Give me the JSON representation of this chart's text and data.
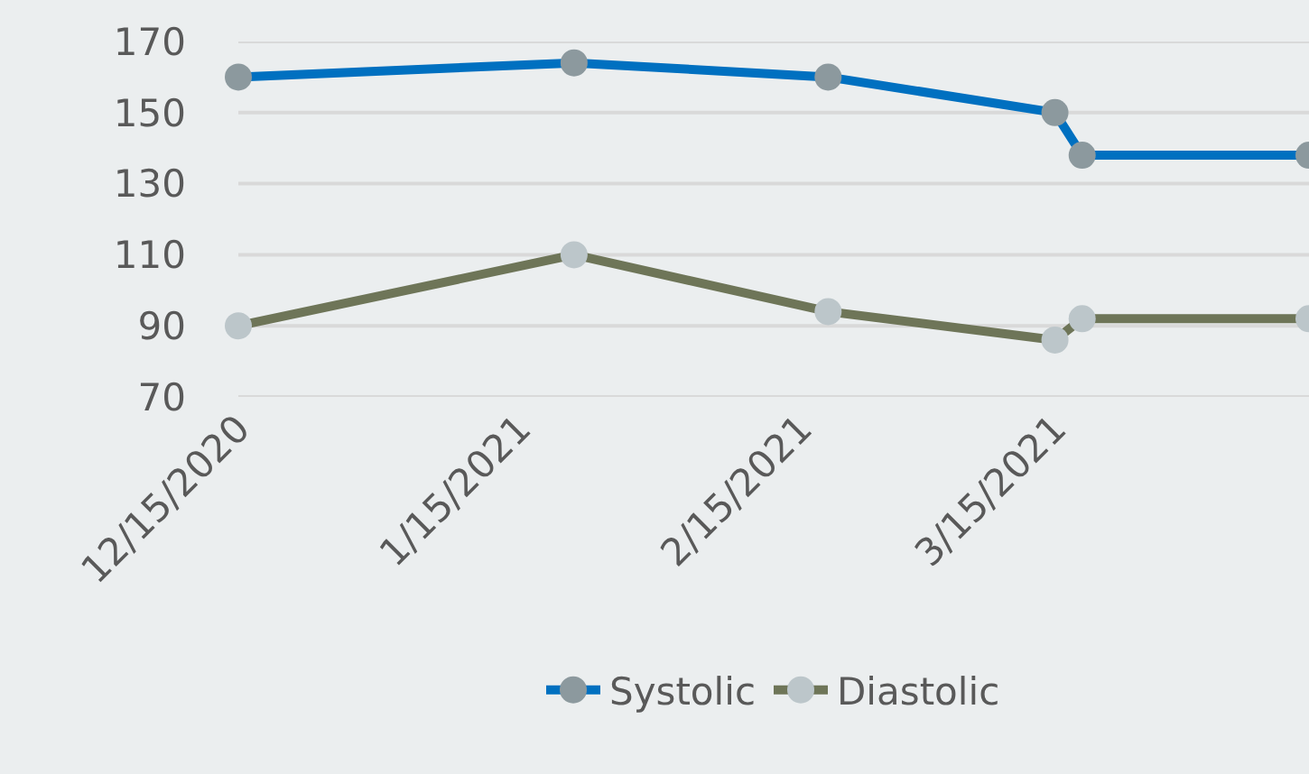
{
  "chart_data": {
    "type": "line",
    "x": [
      "2020-12-15",
      "2021-01-21",
      "2021-02-18",
      "2021-03-15",
      "2021-03-18",
      "2021-04-12"
    ],
    "series": [
      {
        "name": "Systolic",
        "color": "#0070c0",
        "colors": [
          "#8c999e",
          "#8c999e",
          "#8c999e",
          "#8c999e",
          "#8c999e",
          "#8c999e"
        ],
        "values": [
          160,
          164,
          160,
          150,
          138,
          138
        ]
      },
      {
        "name": "Diastolic",
        "color": "#6e7558",
        "colors": [
          "#bcc6ca",
          "#bcc6ca",
          "#bcc6ca",
          "#bcc6ca",
          "#bcc6ca",
          "#bcc6ca"
        ],
        "values": [
          90,
          110,
          94,
          86,
          92,
          92
        ]
      }
    ],
    "xlim": [
      "2020-12-15",
      "2021-04-12"
    ],
    "xticks": [
      {
        "value": "2020-12-15",
        "label": "12/15/2020"
      },
      {
        "value": "2021-01-15",
        "label": "1/15/2021"
      },
      {
        "value": "2021-02-15",
        "label": "2/15/2021"
      },
      {
        "value": "2021-03-15",
        "label": "3/15/2021"
      }
    ],
    "ylim": [
      70,
      170
    ],
    "yticks": [
      70,
      90,
      110,
      130,
      150,
      170
    ],
    "grid": "y",
    "legend": "bottom",
    "marker": "circle",
    "line_style": "solid"
  }
}
